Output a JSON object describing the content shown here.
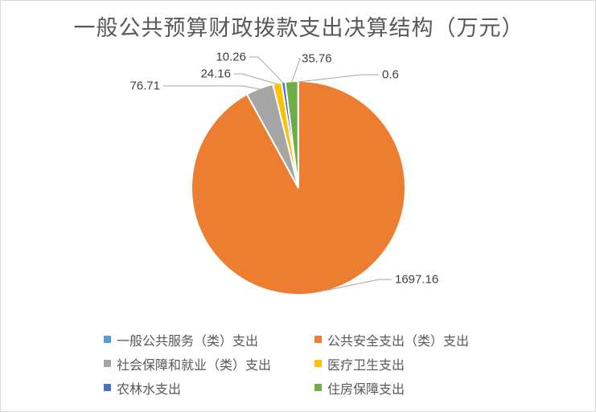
{
  "chart_data": {
    "type": "pie",
    "title": "一般公共预算财政拨款支出决算结构（万元）",
    "categories": [
      "一般公共服务（类）支出",
      "公共安全支出（类）支出",
      "社会保障和就业（类）支出",
      "医疗卫生支出",
      "农林水支出",
      "住房保障支出"
    ],
    "values": [
      0.6,
      1697.16,
      76.71,
      24.16,
      10.26,
      35.76
    ],
    "data_labels": [
      "0.6",
      "1697.16",
      "76.71",
      "24.16",
      "10.26",
      "35.76"
    ],
    "colors": [
      "#5b9bd5",
      "#ed7d31",
      "#a5a5a5",
      "#ffc000",
      "#4472c4",
      "#70ad47"
    ],
    "start_angle_deg": 0,
    "direction": "clockwise",
    "legend_position": "bottom"
  }
}
